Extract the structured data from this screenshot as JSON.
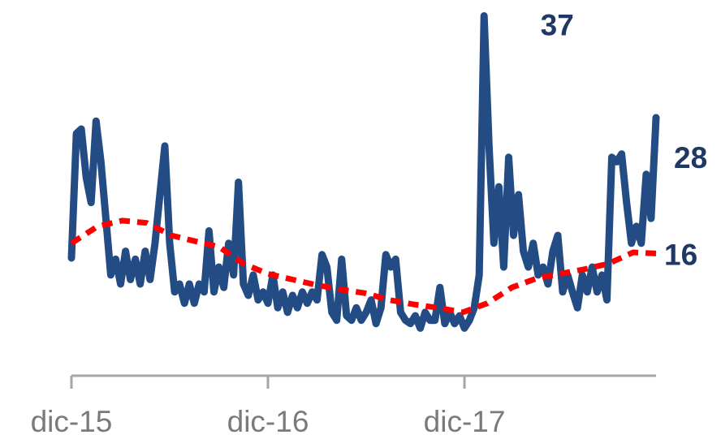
{
  "chart_data": {
    "type": "line",
    "xlim": [
      0,
      35.7
    ],
    "ylim": [
      5.2,
      38.4
    ],
    "xticks": [
      {
        "value": 0,
        "label": "dic-15"
      },
      {
        "value": 12,
        "label": "dic-16"
      },
      {
        "value": 24,
        "label": "dic-17"
      }
    ],
    "series": [
      {
        "color": "#234c85",
        "dash": false,
        "x": [
          0,
          0.3,
          0.6,
          0.9,
          1.2,
          1.5,
          1.8,
          2.1,
          2.4,
          2.7,
          3.0,
          3.3,
          3.6,
          3.9,
          4.2,
          4.5,
          4.8,
          5.1,
          5.4,
          5.7,
          6.0,
          6.3,
          6.6,
          6.9,
          7.2,
          7.5,
          7.8,
          8.1,
          8.4,
          8.7,
          9.0,
          9.3,
          9.6,
          9.9,
          10.2,
          10.5,
          10.8,
          11.1,
          11.4,
          11.7,
          12.0,
          12.3,
          12.6,
          12.9,
          13.2,
          13.5,
          13.8,
          14.1,
          14.4,
          14.7,
          15.0,
          15.3,
          15.6,
          15.9,
          16.2,
          16.5,
          16.8,
          17.1,
          17.4,
          17.7,
          18.0,
          18.3,
          18.6,
          18.9,
          19.2,
          19.5,
          19.8,
          20.1,
          20.4,
          20.7,
          21.0,
          21.3,
          21.6,
          21.9,
          22.2,
          22.5,
          22.8,
          23.1,
          23.4,
          23.7,
          24.0,
          24.3,
          24.6,
          24.9,
          25.2,
          25.5,
          25.8,
          26.1,
          26.4,
          26.7,
          27.0,
          27.3,
          27.6,
          27.9,
          28.2,
          28.5,
          28.8,
          29.1,
          29.4,
          29.7,
          30.0,
          30.3,
          30.6,
          30.9,
          31.2,
          31.5,
          31.8,
          32.1,
          32.4,
          32.7,
          33.0,
          33.3,
          33.6,
          33.9,
          34.2,
          34.5,
          34.8,
          35.1,
          35.4,
          35.7
        ],
        "values": [
          15.6,
          26.6,
          27.0,
          22.7,
          20.5,
          27.7,
          24.1,
          19.1,
          14.1,
          15.5,
          13.3,
          16.2,
          13.7,
          15.5,
          13.3,
          16.2,
          13.7,
          16.9,
          21.2,
          25.5,
          16.9,
          12.6,
          13.3,
          11.6,
          13.3,
          11.6,
          13.3,
          12.6,
          18.0,
          12.6,
          14.8,
          13.0,
          16.9,
          14.1,
          22.3,
          13.3,
          12.3,
          14.1,
          11.9,
          12.6,
          11.6,
          14.1,
          11.2,
          12.6,
          10.8,
          12.3,
          11.2,
          12.6,
          11.6,
          12.6,
          11.9,
          15.9,
          14.8,
          10.8,
          10.1,
          15.5,
          10.5,
          10.1,
          11.2,
          10.1,
          10.8,
          11.9,
          9.8,
          11.2,
          15.9,
          14.8,
          15.5,
          10.8,
          10.1,
          9.8,
          10.5,
          9.4,
          10.8,
          10.1,
          10.1,
          13.0,
          9.8,
          10.8,
          9.8,
          10.5,
          9.4,
          10.1,
          11.2,
          14.1,
          37,
          25.5,
          16.9,
          21.9,
          14.8,
          24.5,
          17.6,
          21.2,
          16.2,
          14.8,
          16.9,
          14.1,
          14.8,
          13.3,
          16.2,
          17.6,
          12.6,
          14.1,
          12.6,
          11.2,
          14.1,
          12.6,
          14.8,
          12.6,
          14.1,
          11.9,
          24.5,
          24.1,
          24.8,
          20.5,
          16.9,
          18.4,
          16.9,
          23.0,
          19.1,
          28
        ]
      },
      {
        "color": "#ff0000",
        "dash": true,
        "x": [
          0,
          1.6,
          3.1,
          4.6,
          6.1,
          7.5,
          9.0,
          10.5,
          12.0,
          13.5,
          15.0,
          16.5,
          17.9,
          19.4,
          20.9,
          22.4,
          23.9,
          25.4,
          26.9,
          28.4,
          29.8,
          31.3,
          32.8,
          34.3,
          35.7
        ],
        "values": [
          16.9,
          18.4,
          18.9,
          18.7,
          17.6,
          17.1,
          16.6,
          15.1,
          14.2,
          13.7,
          13.2,
          12.8,
          12.5,
          11.9,
          11.5,
          11.2,
          10.8,
          11.6,
          13.0,
          13.8,
          14.2,
          14.6,
          15.1,
          16.1,
          16
        ]
      }
    ]
  }
}
